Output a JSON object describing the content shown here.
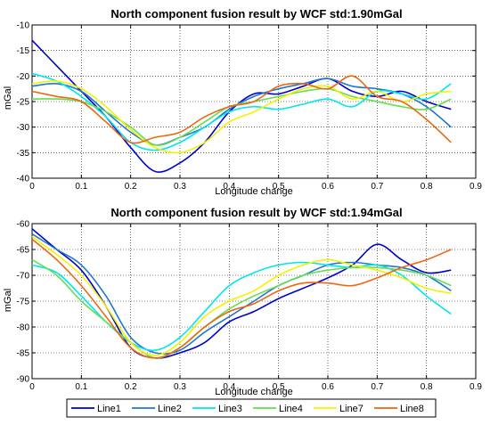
{
  "figure": {
    "legend_entries": [
      {
        "name": "Line1",
        "color": "#0000cc"
      },
      {
        "name": "Line2",
        "color": "#1f77d0"
      },
      {
        "name": "Line3",
        "color": "#00e5ee"
      },
      {
        "name": "Line4",
        "color": "#66dd55"
      },
      {
        "name": "Line7",
        "color": "#f2f200"
      },
      {
        "name": "Line8",
        "color": "#ee6611"
      }
    ]
  },
  "chart_data": [
    {
      "type": "line",
      "title": "North component fusion result by WCF std:1.90mGal",
      "xlabel": "Longitude change",
      "ylabel": "mGal",
      "xlim": [
        0,
        0.9
      ],
      "ylim": [
        -40,
        -10
      ],
      "xticks": [
        0,
        0.1,
        0.2,
        0.3,
        0.4,
        0.5,
        0.6,
        0.7,
        0.8,
        0.9
      ],
      "yticks": [
        -40,
        -35,
        -30,
        -25,
        -20,
        -15,
        -10
      ],
      "xtick_labels": [
        "0",
        "0.1",
        "0.2",
        "0.3",
        "0.4",
        "0.5",
        "0.6",
        "0.7",
        "0.8",
        "0.9"
      ],
      "ytick_labels": [
        "-40",
        "-35",
        "-30",
        "-25",
        "-20",
        "-15",
        "-10"
      ],
      "grid": true,
      "series": [
        {
          "name": "Line1",
          "color": "#0000cc",
          "x": [
            0,
            0.05,
            0.1,
            0.15,
            0.2,
            0.25,
            0.3,
            0.35,
            0.4,
            0.45,
            0.5,
            0.55,
            0.6,
            0.65,
            0.7,
            0.75,
            0.8,
            0.85
          ],
          "y": [
            -13,
            -18,
            -23,
            -28,
            -34,
            -38.7,
            -37,
            -33,
            -27,
            -23.5,
            -23.5,
            -22,
            -20.5,
            -23,
            -24,
            -23,
            -25,
            -26.5
          ]
        },
        {
          "name": "Line2",
          "color": "#1f77d0",
          "x": [
            0,
            0.05,
            0.1,
            0.15,
            0.2,
            0.25,
            0.3,
            0.35,
            0.4,
            0.45,
            0.5,
            0.55,
            0.6,
            0.65,
            0.7,
            0.75,
            0.8,
            0.85
          ],
          "y": [
            -22,
            -21.5,
            -23,
            -27,
            -31,
            -33.5,
            -32,
            -30,
            -26.5,
            -24,
            -22.5,
            -21.5,
            -20.5,
            -22,
            -22.5,
            -23.5,
            -26,
            -30
          ]
        },
        {
          "name": "Line3",
          "color": "#00e5ee",
          "x": [
            0,
            0.05,
            0.1,
            0.15,
            0.2,
            0.25,
            0.3,
            0.35,
            0.4,
            0.45,
            0.5,
            0.55,
            0.6,
            0.65,
            0.7,
            0.75,
            0.8,
            0.85
          ],
          "y": [
            -19.5,
            -21,
            -24,
            -28,
            -33,
            -34.5,
            -33,
            -30,
            -27,
            -26,
            -26.5,
            -25.5,
            -24.5,
            -26,
            -23,
            -23.5,
            -24.5,
            -21.5
          ]
        },
        {
          "name": "Line4",
          "color": "#66dd55",
          "x": [
            0,
            0.05,
            0.1,
            0.15,
            0.2,
            0.25,
            0.3,
            0.35,
            0.4,
            0.45,
            0.5,
            0.55,
            0.6,
            0.65,
            0.7,
            0.75,
            0.8,
            0.85
          ],
          "y": [
            -24.5,
            -24.5,
            -25,
            -27,
            -30,
            -33.5,
            -32,
            -29,
            -26,
            -25,
            -24,
            -23,
            -22.5,
            -24,
            -25,
            -26,
            -26.5,
            -24.5
          ]
        },
        {
          "name": "Line7",
          "color": "#f2f200",
          "x": [
            0,
            0.05,
            0.1,
            0.15,
            0.2,
            0.25,
            0.3,
            0.35,
            0.4,
            0.45,
            0.5,
            0.55,
            0.6,
            0.65,
            0.7,
            0.75,
            0.8,
            0.85
          ],
          "y": [
            -21.5,
            -21,
            -22.5,
            -26,
            -30.5,
            -34,
            -35,
            -33,
            -29,
            -27,
            -24.5,
            -22.5,
            -22,
            -24.5,
            -23,
            -25,
            -23.5,
            -23
          ]
        },
        {
          "name": "Line8",
          "color": "#ee6611",
          "x": [
            0,
            0.05,
            0.1,
            0.15,
            0.2,
            0.25,
            0.3,
            0.35,
            0.4,
            0.45,
            0.5,
            0.55,
            0.6,
            0.65,
            0.7,
            0.75,
            0.8,
            0.85
          ],
          "y": [
            -23,
            -24,
            -25,
            -29,
            -33,
            -32,
            -31,
            -28,
            -26,
            -25,
            -22,
            -21.5,
            -22.5,
            -20,
            -24,
            -25,
            -28.5,
            -33
          ]
        }
      ]
    },
    {
      "type": "line",
      "title": "North component fusion result by WCF std:1.94mGal",
      "xlabel": "Longitude change",
      "ylabel": "mGal",
      "xlim": [
        0,
        0.9
      ],
      "ylim": [
        -90,
        -60
      ],
      "xticks": [
        0,
        0.1,
        0.2,
        0.3,
        0.4,
        0.5,
        0.6,
        0.7,
        0.8,
        0.9
      ],
      "yticks": [
        -90,
        -85,
        -80,
        -75,
        -70,
        -65,
        -60
      ],
      "xtick_labels": [
        "0",
        "0.1",
        "0.2",
        "0.3",
        "0.4",
        "0.5",
        "0.6",
        "0.7",
        "0.8",
        "0.9"
      ],
      "ytick_labels": [
        "-90",
        "-85",
        "-80",
        "-75",
        "-70",
        "-65",
        "-60"
      ],
      "grid": true,
      "series": [
        {
          "name": "Line1",
          "color": "#0000cc",
          "x": [
            0,
            0.05,
            0.1,
            0.15,
            0.2,
            0.25,
            0.3,
            0.35,
            0.4,
            0.45,
            0.5,
            0.55,
            0.6,
            0.65,
            0.7,
            0.75,
            0.8,
            0.85
          ],
          "y": [
            -61,
            -65,
            -69,
            -76,
            -84,
            -86,
            -85,
            -83,
            -79,
            -77,
            -74.5,
            -72.5,
            -70.5,
            -68,
            -64,
            -67,
            -69.5,
            -69
          ]
        },
        {
          "name": "Line2",
          "color": "#1f77d0",
          "x": [
            0,
            0.05,
            0.1,
            0.15,
            0.2,
            0.25,
            0.3,
            0.35,
            0.4,
            0.45,
            0.5,
            0.55,
            0.6,
            0.65,
            0.7,
            0.75,
            0.8,
            0.85
          ],
          "y": [
            -62,
            -65,
            -68,
            -74,
            -82,
            -85,
            -84.5,
            -81,
            -78,
            -75,
            -72,
            -70,
            -68,
            -67.5,
            -68,
            -68.5,
            -70,
            -73
          ]
        },
        {
          "name": "Line3",
          "color": "#00e5ee",
          "x": [
            0,
            0.05,
            0.1,
            0.15,
            0.2,
            0.25,
            0.3,
            0.35,
            0.4,
            0.45,
            0.5,
            0.55,
            0.6,
            0.65,
            0.7,
            0.75,
            0.8,
            0.85
          ],
          "y": [
            -68,
            -69.5,
            -74,
            -79,
            -83,
            -84.5,
            -82,
            -77,
            -72,
            -69.5,
            -68,
            -67.5,
            -68,
            -68.5,
            -68,
            -70,
            -74,
            -77.5
          ]
        },
        {
          "name": "Line4",
          "color": "#66dd55",
          "x": [
            0,
            0.05,
            0.1,
            0.15,
            0.2,
            0.25,
            0.3,
            0.35,
            0.4,
            0.45,
            0.5,
            0.55,
            0.6,
            0.65,
            0.7,
            0.75,
            0.8,
            0.85
          ],
          "y": [
            -67,
            -70,
            -75,
            -79,
            -83,
            -86,
            -84,
            -80,
            -76.5,
            -74,
            -72,
            -70,
            -69,
            -68.5,
            -68.5,
            -69,
            -70,
            -72
          ]
        },
        {
          "name": "Line7",
          "color": "#f2f200",
          "x": [
            0,
            0.05,
            0.1,
            0.15,
            0.2,
            0.25,
            0.3,
            0.35,
            0.4,
            0.45,
            0.5,
            0.55,
            0.6,
            0.65,
            0.7,
            0.75,
            0.8,
            0.85
          ],
          "y": [
            -62.5,
            -66,
            -70,
            -76,
            -83,
            -85.5,
            -83,
            -78,
            -75,
            -73,
            -70,
            -68,
            -67,
            -68,
            -69,
            -70.5,
            -72.5,
            -73.5
          ]
        },
        {
          "name": "Line8",
          "color": "#ee6611",
          "x": [
            0,
            0.05,
            0.1,
            0.15,
            0.2,
            0.25,
            0.3,
            0.35,
            0.4,
            0.45,
            0.5,
            0.55,
            0.6,
            0.65,
            0.7,
            0.75,
            0.8,
            0.85
          ],
          "y": [
            -63,
            -67,
            -72,
            -78,
            -84,
            -86,
            -84,
            -80,
            -77,
            -75.5,
            -73,
            -71.5,
            -71.5,
            -72,
            -70.5,
            -68.5,
            -67,
            -65
          ]
        }
      ]
    }
  ]
}
